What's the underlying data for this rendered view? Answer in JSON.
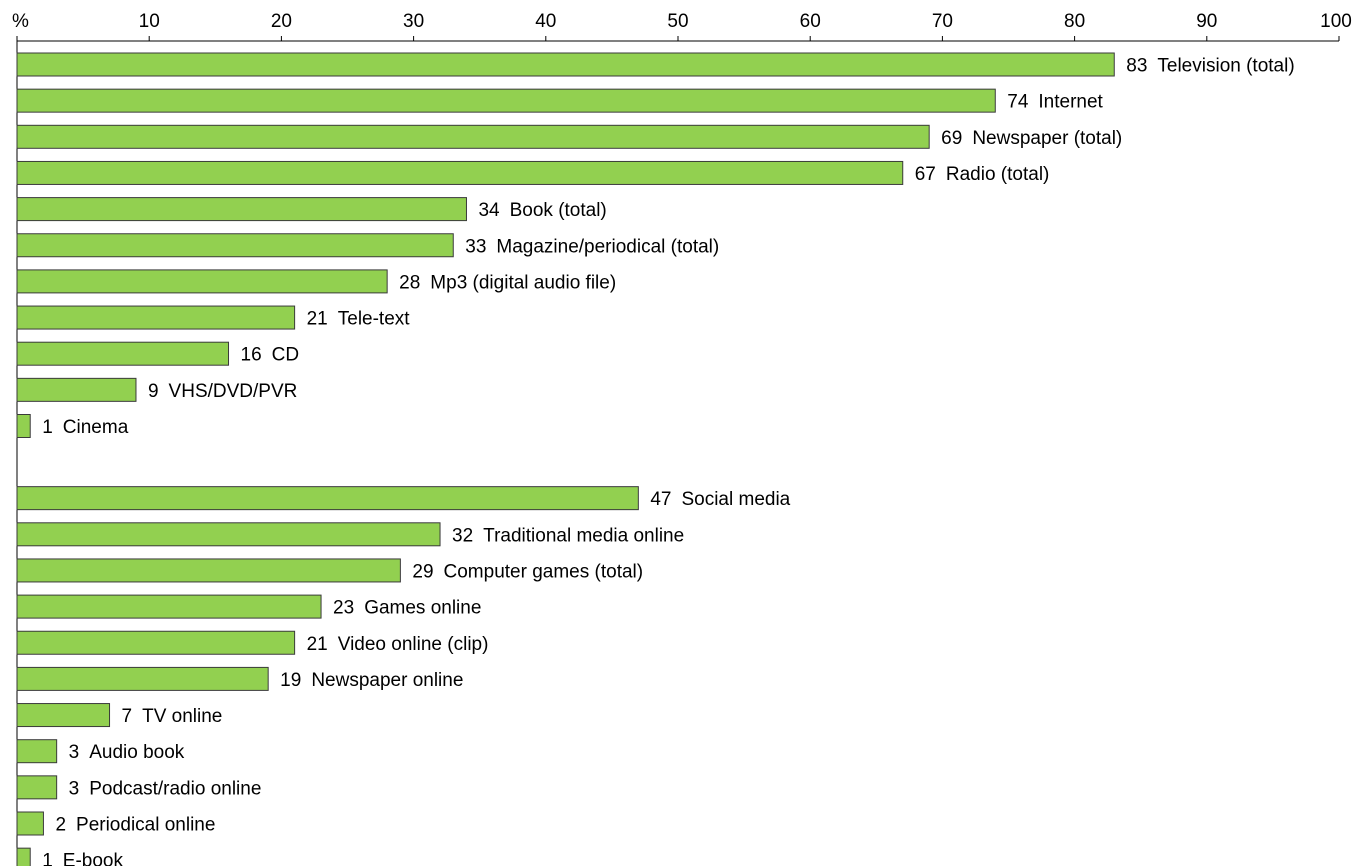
{
  "chart_data": {
    "type": "bar",
    "orientation": "horizontal",
    "axis_unit": "%",
    "xlim": [
      0,
      100
    ],
    "ticks": [
      10,
      20,
      30,
      40,
      50,
      60,
      70,
      80,
      90,
      100
    ],
    "bar_color": "#92d050",
    "grid": false,
    "groups": [
      {
        "bars": [
          {
            "label": "Television (total)",
            "value": 83
          },
          {
            "label": "Internet",
            "value": 74
          },
          {
            "label": "Newspaper (total)",
            "value": 69
          },
          {
            "label": "Radio (total)",
            "value": 67
          },
          {
            "label": "Book (total)",
            "value": 34
          },
          {
            "label": "Magazine/periodical (total)",
            "value": 33
          },
          {
            "label": "Mp3 (digital audio file)",
            "value": 28
          },
          {
            "label": "Tele-text",
            "value": 21
          },
          {
            "label": "CD",
            "value": 16
          },
          {
            "label": "VHS/DVD/PVR",
            "value": 9
          },
          {
            "label": "Cinema",
            "value": 1
          }
        ]
      },
      {
        "bars": [
          {
            "label": "Social media",
            "value": 47
          },
          {
            "label": "Traditional media online",
            "value": 32
          },
          {
            "label": "Computer games (total)",
            "value": 29
          },
          {
            "label": "Games online",
            "value": 23
          },
          {
            "label": "Video online (clip)",
            "value": 21
          },
          {
            "label": "Newspaper online",
            "value": 19
          },
          {
            "label": "TV online",
            "value": 7
          },
          {
            "label": "Audio book",
            "value": 3
          },
          {
            "label": "Podcast/radio online",
            "value": 3
          },
          {
            "label": "Periodical online",
            "value": 2
          },
          {
            "label": "E-book",
            "value": 1
          }
        ]
      }
    ]
  }
}
